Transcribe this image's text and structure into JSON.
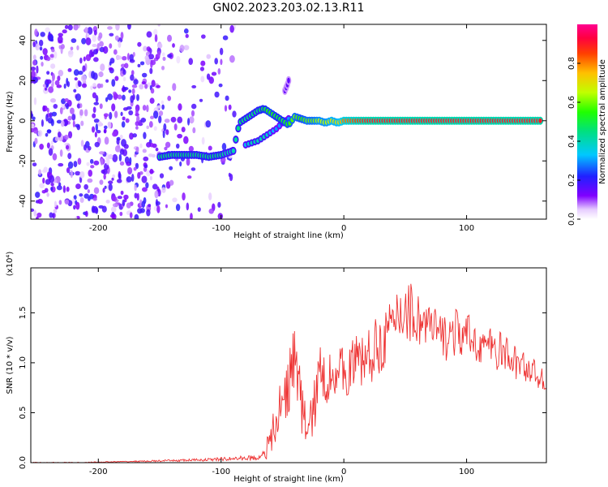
{
  "title": "GN02.2023.203.02.13.R11",
  "colors": {
    "snr_line": "#ee3333",
    "axis": "#000000",
    "background": "#ffffff"
  },
  "chart_data": [
    {
      "type": "heatmap",
      "xlabel": "Height of straight line (km)",
      "ylabel": "Frequency (Hz)",
      "xlim": [
        -255,
        165
      ],
      "ylim": [
        -49,
        48
      ],
      "x_ticks": [
        -200,
        -100,
        0,
        100
      ],
      "y_ticks": [
        -40,
        -20,
        0,
        20,
        40
      ],
      "x_tick_labels": [
        "-200",
        "-100",
        "0",
        "100"
      ],
      "y_tick_labels": [
        "-40",
        "-20",
        "0",
        "20",
        "40"
      ],
      "colorbar": {
        "label": "Normalized spectral amplitude",
        "range": [
          0,
          1
        ],
        "ticks": [
          0.0,
          0.2,
          0.4,
          0.6,
          0.8
        ],
        "tick_labels": [
          "0.0",
          "0.2",
          "0.4",
          "0.6",
          "0.8"
        ],
        "colormap": "rainbow (white, violet, blue, cyan, green, yellow, orange, red, magenta)"
      },
      "noise_region": {
        "x_range": [
          -255,
          -88
        ],
        "y_range": [
          -49,
          48
        ],
        "typical_amplitude": 0.15
      },
      "trace": {
        "x": [
          -150,
          -140,
          -130,
          -120,
          -110,
          -100,
          -95,
          -90,
          -85,
          -80,
          -75,
          -70,
          -65,
          -60,
          -55,
          -50,
          -45,
          -40,
          -35,
          -30,
          -25,
          -20,
          -15,
          -10,
          -5,
          0,
          10,
          20,
          30,
          40,
          50,
          60,
          70,
          80,
          90,
          100,
          110,
          120,
          130,
          140,
          150,
          160
        ],
        "y": [
          -18,
          -17,
          -17,
          -17,
          -18,
          -17,
          -16,
          -15,
          -1,
          1,
          3,
          5,
          6,
          4,
          2,
          0,
          -2,
          2,
          1,
          0,
          0,
          0,
          -1,
          0,
          -1,
          0,
          0,
          0,
          0,
          0,
          0,
          0,
          0,
          0,
          0,
          0,
          0,
          0,
          0,
          0,
          0,
          0
        ],
        "amplitude": [
          0.45,
          0.45,
          0.45,
          0.45,
          0.45,
          0.45,
          0.4,
          0.4,
          0.45,
          0.45,
          0.45,
          0.45,
          0.5,
          0.55,
          0.5,
          0.5,
          0.55,
          0.6,
          0.55,
          0.6,
          0.6,
          0.65,
          0.65,
          0.7,
          0.7,
          0.8,
          0.85,
          0.9,
          0.9,
          0.9,
          0.9,
          0.9,
          0.9,
          0.9,
          0.9,
          0.9,
          0.9,
          0.9,
          0.9,
          0.9,
          0.9,
          0.9
        ]
      },
      "secondary_trace": {
        "x": [
          -80,
          -75,
          -70,
          -65,
          -60,
          -55,
          -50,
          -45
        ],
        "y": [
          -12,
          -11,
          -10,
          -8,
          -6,
          -4,
          -1,
          1
        ],
        "amplitude": [
          0.35,
          0.4,
          0.4,
          0.4,
          0.35,
          0.3,
          0.3,
          0.3
        ]
      },
      "blip": {
        "x": [
          -48,
          -46,
          -45
        ],
        "y": [
          15,
          18,
          20
        ],
        "amplitude": 0.15
      }
    },
    {
      "type": "line",
      "xlabel": "Height of straight line (km)",
      "ylabel": "SNR (10 * v/v)",
      "y_multiplier": "(x10⁴)",
      "xlim": [
        -255,
        165
      ],
      "ylim": [
        0,
        1.95
      ],
      "x_ticks": [
        -200,
        -100,
        0,
        100
      ],
      "y_ticks": [
        0.0,
        0.5,
        1.0,
        1.5
      ],
      "x_tick_labels": [
        "-200",
        "-100",
        "0",
        "100"
      ],
      "y_tick_labels": [
        "0.0",
        "0.5",
        "1.0",
        "1.5"
      ],
      "series": [
        {
          "color": "#ee3333",
          "x": [
            -255,
            -220,
            -180,
            -140,
            -110,
            -90,
            -70,
            -65,
            -60,
            -55,
            -50,
            -45,
            -40,
            -35,
            -30,
            -25,
            -20,
            -15,
            -10,
            -5,
            0,
            10,
            20,
            30,
            40,
            45,
            50,
            60,
            70,
            80,
            90,
            100,
            110,
            120,
            130,
            140,
            150,
            160,
            165
          ],
          "y": [
            0.0,
            0.0,
            0.01,
            0.02,
            0.03,
            0.04,
            0.05,
            0.1,
            0.2,
            0.4,
            0.6,
            0.8,
            1.1,
            0.6,
            0.3,
            0.5,
            0.9,
            0.8,
            0.9,
            0.95,
            0.9,
            1.0,
            1.05,
            1.2,
            1.35,
            1.5,
            1.55,
            1.45,
            1.35,
            1.25,
            1.3,
            1.25,
            1.2,
            1.15,
            1.1,
            1.0,
            0.95,
            0.85,
            0.8
          ],
          "noise_amplitude": [
            0.005,
            0.005,
            0.005,
            0.01,
            0.015,
            0.02,
            0.03,
            0.08,
            0.15,
            0.25,
            0.3,
            0.35,
            0.3,
            0.3,
            0.2,
            0.3,
            0.3,
            0.25,
            0.25,
            0.25,
            0.25,
            0.3,
            0.3,
            0.3,
            0.3,
            0.35,
            0.35,
            0.3,
            0.28,
            0.25,
            0.25,
            0.25,
            0.22,
            0.2,
            0.2,
            0.18,
            0.15,
            0.12,
            0.1
          ]
        }
      ]
    }
  ]
}
